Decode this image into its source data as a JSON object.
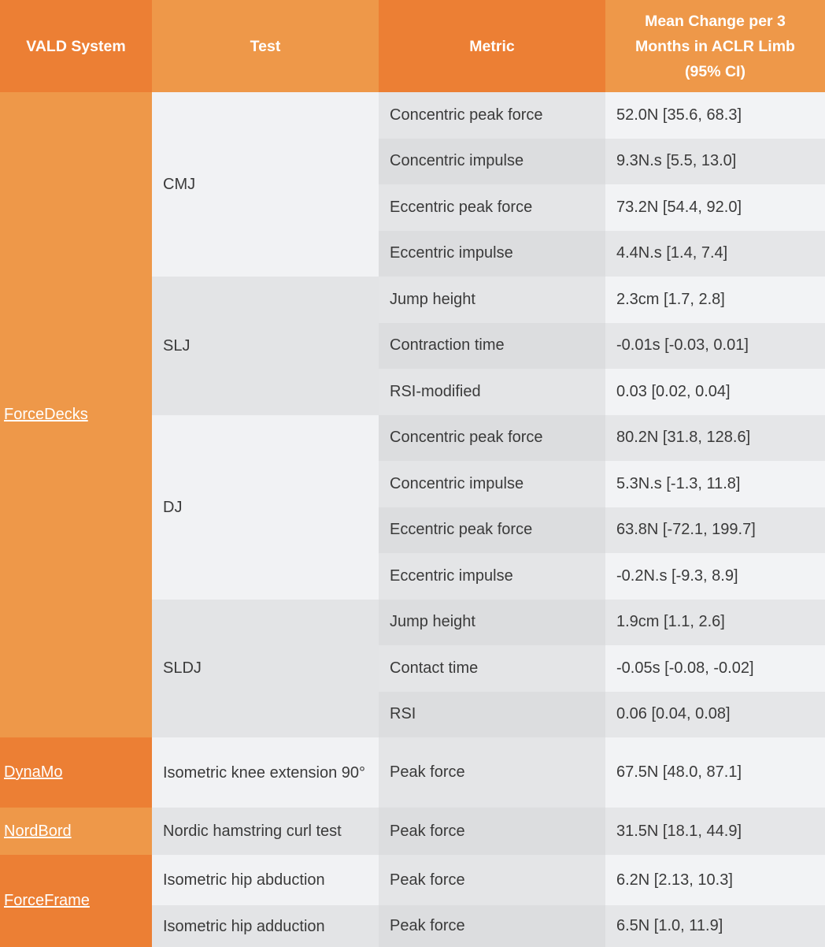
{
  "header": {
    "system": "VALD System",
    "test": "Test",
    "metric": "Metric",
    "value": "Mean Change per 3 Months in ACLR Limb (95% CI)"
  },
  "colors": {
    "orange_dark": "#ec7f34",
    "orange_light": "#ee9849"
  },
  "systems": [
    {
      "name": "ForceDecks",
      "shade": "light",
      "tests": [
        {
          "name": "CMJ",
          "rows": [
            {
              "metric": "Concentric peak force",
              "value": "52.0N [35.6, 68.3]"
            },
            {
              "metric": "Concentric impulse",
              "value": "9.3N.s [5.5, 13.0]"
            },
            {
              "metric": "Eccentric peak force",
              "value": "73.2N [54.4, 92.0]"
            },
            {
              "metric": "Eccentric impulse",
              "value": "4.4N.s [1.4, 7.4]"
            }
          ]
        },
        {
          "name": "SLJ",
          "rows": [
            {
              "metric": "Jump height",
              "value": "2.3cm [1.7, 2.8]"
            },
            {
              "metric": "Contraction time",
              "value": "-0.01s [-0.03, 0.01]"
            },
            {
              "metric": "RSI-modified",
              "value": "0.03 [0.02, 0.04]"
            }
          ]
        },
        {
          "name": "DJ",
          "rows": [
            {
              "metric": "Concentric peak force",
              "value": "80.2N [31.8, 128.6]"
            },
            {
              "metric": "Concentric impulse",
              "value": "5.3N.s [-1.3, 11.8]"
            },
            {
              "metric": "Eccentric peak force",
              "value": "63.8N [-72.1, 199.7]"
            },
            {
              "metric": "Eccentric impulse",
              "value": "-0.2N.s [-9.3, 8.9]"
            }
          ]
        },
        {
          "name": "SLDJ",
          "rows": [
            {
              "metric": "Jump height",
              "value": "1.9cm [1.1, 2.6]"
            },
            {
              "metric": "Contact time",
              "value": "-0.05s [-0.08, -0.02]"
            },
            {
              "metric": "RSI",
              "value": "0.06 [0.04, 0.08]"
            }
          ]
        }
      ]
    },
    {
      "name": "DynaMo",
      "shade": "dark",
      "tests": [
        {
          "name": "Isometric knee extension 90°",
          "rows": [
            {
              "metric": "Peak force",
              "value": "67.5N [48.0, 87.1]"
            }
          ]
        }
      ]
    },
    {
      "name": "NordBord",
      "shade": "light",
      "tests": [
        {
          "name": "Nordic hamstring curl test",
          "rows": [
            {
              "metric": "Peak force",
              "value": "31.5N [18.1, 44.9]"
            }
          ]
        }
      ]
    },
    {
      "name": "ForceFrame",
      "shade": "dark",
      "tests": [
        {
          "name": "Isometric hip abduction",
          "rows": [
            {
              "metric": "Peak force",
              "value": "6.2N [2.13, 10.3]"
            }
          ]
        },
        {
          "name": "Isometric hip adduction",
          "rows": [
            {
              "metric": "Peak force",
              "value": "6.5N [1.0, 11.9]"
            }
          ]
        }
      ]
    }
  ]
}
